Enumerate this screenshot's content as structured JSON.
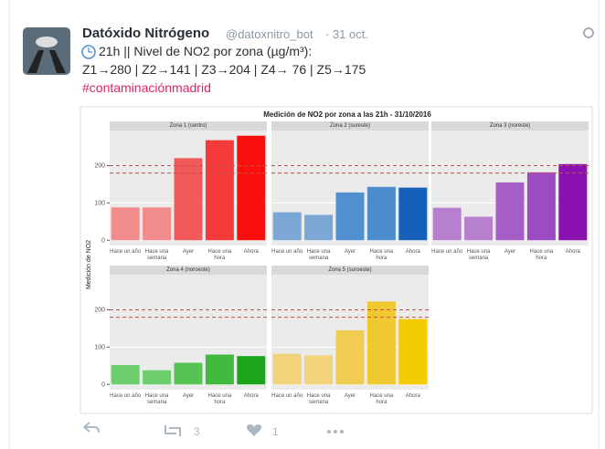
{
  "tweet": {
    "name": "Datóxido Nitrógeno",
    "handle": "@datoxnitro_bot",
    "date": "· 31 oct.",
    "lines": [
      "21h || Nivel de NO2 por zona (µg/m³):",
      "Z1→280 | Z2→141 | Z3→204 | Z4→ 76 | Z5→175"
    ],
    "hashtag": "#contaminaciónmadrid",
    "retweets": "3",
    "likes": "1"
  },
  "figure": {
    "title": "Medición de NO2 por zona a las 21h - 31/10/2016",
    "ylabel": "Medición de NO2"
  },
  "chart_data": [
    {
      "type": "bar",
      "title": "Zona 1 (centro)",
      "categories": [
        "Hace un año",
        "Hace una semana",
        "Ayer",
        "Hace una hora",
        "Ahora"
      ],
      "values": [
        88,
        88,
        220,
        268,
        280
      ],
      "colors": [
        "#f28b8b",
        "#f28b8b",
        "#f25a5a",
        "#f53a3a",
        "#fb0f0f"
      ],
      "ylim": [
        -14,
        294
      ],
      "yticks": [
        0,
        100,
        200
      ],
      "hlines": [
        200,
        180
      ],
      "hline_color": "#c0504d"
    },
    {
      "type": "bar",
      "title": "Zona 2 (sureste)",
      "categories": [
        "Hace un año",
        "Hace una semana",
        "Ayer",
        "Hace una hora",
        "Ahora"
      ],
      "values": [
        75,
        68,
        128,
        143,
        141
      ],
      "colors": [
        "#7ba7d6",
        "#7ba7d6",
        "#5090d0",
        "#4a8ccc",
        "#1560b8"
      ],
      "ylim": [
        -14,
        294
      ],
      "yticks": [
        0,
        100,
        200
      ],
      "hlines": [
        200,
        180
      ],
      "hline_color": "#c0504d"
    },
    {
      "type": "bar",
      "title": "Zona 3 (noreste)",
      "categories": [
        "Hace un año",
        "Hace una semana",
        "Ayer",
        "Hace una hora",
        "Ahora"
      ],
      "values": [
        87,
        63,
        155,
        182,
        204
      ],
      "colors": [
        "#b67fd0",
        "#b67fd0",
        "#a55ec8",
        "#9c4bc2",
        "#8a10b0"
      ],
      "ylim": [
        -14,
        294
      ],
      "yticks": [
        0,
        100,
        200
      ],
      "hlines": [
        200,
        180
      ],
      "hline_color": "#c0504d"
    },
    {
      "type": "bar",
      "title": "Zona 4 (noroeste)",
      "categories": [
        "Hace un año",
        "Hace una semana",
        "Ayer",
        "Hace una hora",
        "Ahora"
      ],
      "values": [
        52,
        38,
        58,
        80,
        76
      ],
      "colors": [
        "#6dce6d",
        "#6dce6d",
        "#55c455",
        "#40bb40",
        "#1aa51a"
      ],
      "ylim": [
        -14,
        294
      ],
      "yticks": [
        0,
        100,
        200
      ],
      "hlines": [
        200,
        180
      ],
      "hline_color": "#c0504d"
    },
    {
      "type": "bar",
      "title": "Zona 5 (suroeste)",
      "categories": [
        "Hace un año",
        "Hace una semana",
        "Ayer",
        "Hace una hora",
        "Ahora"
      ],
      "values": [
        82,
        78,
        145,
        222,
        175
      ],
      "colors": [
        "#f2d27a",
        "#f2d27a",
        "#f0cc50",
        "#f0c82f",
        "#f2cc00"
      ],
      "ylim": [
        -14,
        294
      ],
      "yticks": [
        0,
        100,
        200
      ],
      "hlines": [
        200,
        180
      ],
      "hline_color": "#c0504d"
    }
  ]
}
